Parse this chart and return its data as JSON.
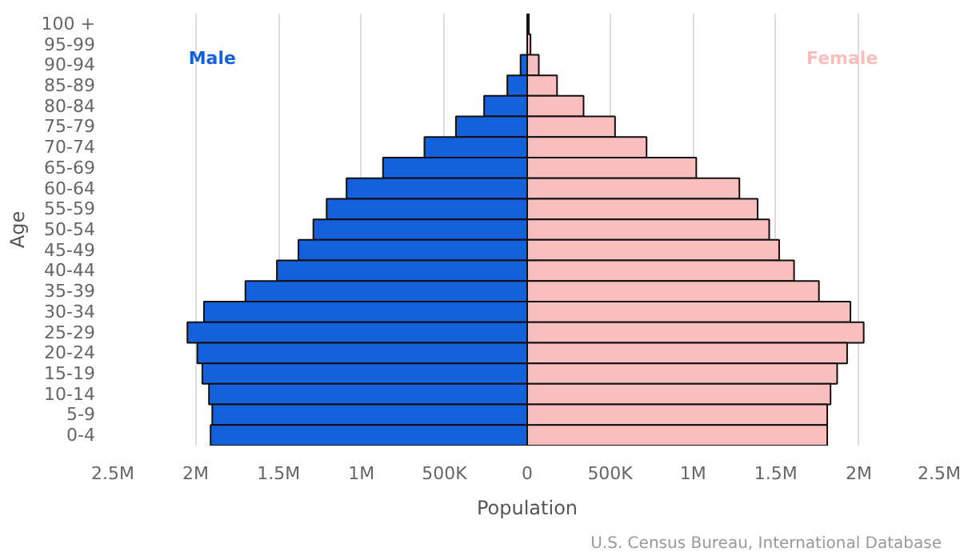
{
  "chart_data": {
    "type": "bar",
    "orientation": "horizontal",
    "xlabel": "Population",
    "ylabel": "Age",
    "categories": [
      "100 +",
      "95-99",
      "90-94",
      "85-89",
      "80-84",
      "75-79",
      "70-74",
      "65-69",
      "60-64",
      "55-59",
      "50-54",
      "45-49",
      "40-44",
      "35-39",
      "30-34",
      "25-29",
      "20-24",
      "15-19",
      "10-14",
      "5-9",
      "0-4"
    ],
    "series": [
      {
        "name": "Male",
        "color": "#1560dd",
        "values": [
          null,
          null,
          -40000,
          -120000,
          -260000,
          -430000,
          -620000,
          -870000,
          -1090000,
          -1210000,
          -1290000,
          -1380000,
          -1510000,
          -1700000,
          -1950000,
          -2050000,
          -1990000,
          -1960000,
          -1920000,
          -1900000,
          -1910000
        ]
      },
      {
        "name": "Female",
        "color": "#f9bfbf",
        "values": [
          10000,
          20000,
          70000,
          180000,
          340000,
          530000,
          720000,
          1020000,
          1280000,
          1390000,
          1460000,
          1520000,
          1610000,
          1760000,
          1950000,
          2030000,
          1930000,
          1870000,
          1830000,
          1810000,
          1810000
        ]
      }
    ],
    "xlim": [
      -2500000,
      2500000
    ],
    "xticks": [
      {
        "value": -2500000,
        "label": "2.5M"
      },
      {
        "value": -2000000,
        "label": "2M"
      },
      {
        "value": -1500000,
        "label": "1.5M"
      },
      {
        "value": -1000000,
        "label": "1M"
      },
      {
        "value": -500000,
        "label": "500K"
      },
      0,
      {
        "value": 500000,
        "label": "500K"
      },
      {
        "value": 1000000,
        "label": "1M"
      },
      {
        "value": 1500000,
        "label": "1.5M"
      },
      {
        "value": 2000000,
        "label": "2M"
      },
      {
        "value": 2500000,
        "label": "2.5M"
      }
    ],
    "grid": "x",
    "stacked": true,
    "annotations": [
      "U.S. Census Bureau, International Database"
    ]
  }
}
